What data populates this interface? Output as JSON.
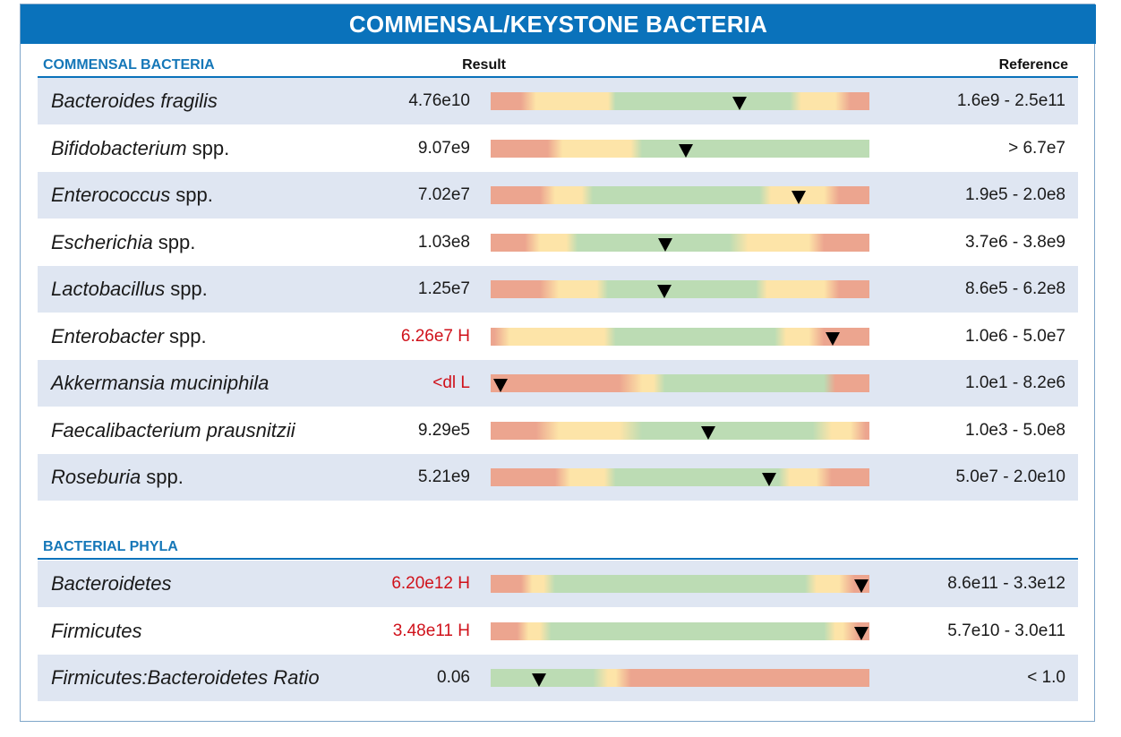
{
  "title": "COMMENSAL/KEYSTONE BACTERIA",
  "colors": {
    "red": "#eca58f",
    "yellow": "#fde4a8",
    "green": "#bcdcb4",
    "header": "#0a72bb",
    "flag": "#d0121b"
  },
  "columns": {
    "result": "Result",
    "reference": "Reference"
  },
  "sections": [
    {
      "label": "COMMENSAL BACTERIA",
      "rows": [
        {
          "name": "Bacteroides fragilis",
          "suffix": "",
          "result": "4.76e10",
          "flag": false,
          "reference": "1.6e9 - 2.5e11",
          "marker_pct": 65.7,
          "zones": [
            [
              "red",
              0
            ],
            [
              "red",
              8
            ],
            [
              "yellow",
              12
            ],
            [
              "yellow",
              31
            ],
            [
              "green",
              33
            ],
            [
              "green",
              79
            ],
            [
              "yellow",
              82
            ],
            [
              "yellow",
              91
            ],
            [
              "red",
              95
            ],
            [
              "red",
              100
            ]
          ]
        },
        {
          "name": "Bifidobacterium",
          "suffix": "spp.",
          "result": "9.07e9",
          "flag": false,
          "reference": "> 6.7e7",
          "marker_pct": 51.5,
          "zones": [
            [
              "red",
              0
            ],
            [
              "red",
              15
            ],
            [
              "yellow",
              19
            ],
            [
              "yellow",
              37
            ],
            [
              "green",
              40
            ],
            [
              "green",
              100
            ]
          ]
        },
        {
          "name": "Enterococcus",
          "suffix": "spp.",
          "result": "7.02e7",
          "flag": false,
          "reference": "1.9e5 - 2.0e8",
          "marker_pct": 81.3,
          "zones": [
            [
              "red",
              0
            ],
            [
              "red",
              13
            ],
            [
              "yellow",
              17
            ],
            [
              "yellow",
              24
            ],
            [
              "green",
              27
            ],
            [
              "green",
              71
            ],
            [
              "yellow",
              74
            ],
            [
              "yellow",
              88
            ],
            [
              "red",
              92
            ],
            [
              "red",
              100
            ]
          ]
        },
        {
          "name": "Escherichia",
          "suffix": "spp.",
          "result": "1.03e8",
          "flag": false,
          "reference": "3.7e6 - 3.8e9",
          "marker_pct": 46.1,
          "zones": [
            [
              "red",
              0
            ],
            [
              "red",
              9
            ],
            [
              "yellow",
              13
            ],
            [
              "yellow",
              20
            ],
            [
              "green",
              23
            ],
            [
              "green",
              63
            ],
            [
              "yellow",
              68
            ],
            [
              "yellow",
              84
            ],
            [
              "red",
              88
            ],
            [
              "red",
              100
            ]
          ]
        },
        {
          "name": "Lactobacillus",
          "suffix": "spp.",
          "result": "1.25e7",
          "flag": false,
          "reference": "8.6e5 - 6.2e8",
          "marker_pct": 45.9,
          "zones": [
            [
              "red",
              0
            ],
            [
              "red",
              13
            ],
            [
              "yellow",
              18
            ],
            [
              "yellow",
              28
            ],
            [
              "green",
              31
            ],
            [
              "green",
              70
            ],
            [
              "yellow",
              73
            ],
            [
              "yellow",
              88
            ],
            [
              "red",
              92
            ],
            [
              "red",
              100
            ]
          ]
        },
        {
          "name": "Enterobacter",
          "suffix": "spp.",
          "result": "6.26e7 H",
          "flag": true,
          "reference": "1.0e6 - 5.0e7",
          "marker_pct": 90.3,
          "zones": [
            [
              "red",
              0
            ],
            [
              "red",
              1
            ],
            [
              "yellow",
              5
            ],
            [
              "yellow",
              30
            ],
            [
              "green",
              33
            ],
            [
              "green",
              75
            ],
            [
              "yellow",
              78
            ],
            [
              "yellow",
              84
            ],
            [
              "red",
              88
            ],
            [
              "red",
              100
            ]
          ]
        },
        {
          "name": "Akkermansia muciniphila",
          "suffix": "",
          "result": "<dl L",
          "flag": true,
          "reference": "1.0e1 - 8.2e6",
          "marker_pct": 2.6,
          "zones": [
            [
              "red",
              0
            ],
            [
              "red",
              34
            ],
            [
              "yellow",
              40
            ],
            [
              "yellow",
              43
            ],
            [
              "green",
              46
            ],
            [
              "green",
              88
            ],
            [
              "red",
              91
            ],
            [
              "red",
              100
            ]
          ]
        },
        {
          "name": "Faecalibacterium prausnitzii",
          "suffix": "",
          "result": "9.29e5",
          "flag": false,
          "reference": "1.0e3 - 5.0e8",
          "marker_pct": 57.4,
          "zones": [
            [
              "red",
              0
            ],
            [
              "red",
              12
            ],
            [
              "yellow",
              18
            ],
            [
              "yellow",
              34
            ],
            [
              "green",
              40
            ],
            [
              "green",
              85
            ],
            [
              "yellow",
              90
            ],
            [
              "yellow",
              95
            ],
            [
              "red",
              99
            ],
            [
              "red",
              100
            ]
          ]
        },
        {
          "name": "Roseburia",
          "suffix": "spp.",
          "result": "5.21e9",
          "flag": false,
          "reference": "5.0e7 - 2.0e10",
          "marker_pct": 73.5,
          "zones": [
            [
              "red",
              0
            ],
            [
              "red",
              17
            ],
            [
              "yellow",
              21
            ],
            [
              "yellow",
              30
            ],
            [
              "green",
              33
            ],
            [
              "green",
              76
            ],
            [
              "yellow",
              79
            ],
            [
              "yellow",
              86
            ],
            [
              "red",
              90
            ],
            [
              "red",
              100
            ]
          ]
        }
      ]
    },
    {
      "label": "BACTERIAL PHYLA",
      "rows": [
        {
          "name": "Bacteroidetes",
          "suffix": "",
          "result": "6.20e12 H",
          "flag": true,
          "reference": "8.6e11 - 3.3e12",
          "marker_pct": 97.9,
          "zones": [
            [
              "red",
              0
            ],
            [
              "red",
              8
            ],
            [
              "yellow",
              11
            ],
            [
              "yellow",
              14
            ],
            [
              "green",
              17
            ],
            [
              "green",
              83
            ],
            [
              "yellow",
              86
            ],
            [
              "yellow",
              92
            ],
            [
              "red",
              96
            ],
            [
              "red",
              100
            ]
          ]
        },
        {
          "name": "Firmicutes",
          "suffix": "",
          "result": "3.48e11 H",
          "flag": true,
          "reference": "5.7e10 - 3.0e11",
          "marker_pct": 97.9,
          "zones": [
            [
              "red",
              0
            ],
            [
              "red",
              7
            ],
            [
              "yellow",
              10
            ],
            [
              "yellow",
              13
            ],
            [
              "green",
              16
            ],
            [
              "green",
              88
            ],
            [
              "yellow",
              91
            ],
            [
              "yellow",
              93
            ],
            [
              "red",
              97
            ],
            [
              "red",
              100
            ]
          ]
        },
        {
          "name": "Firmicutes:Bacteroidetes Ratio",
          "suffix": "",
          "result": "0.06",
          "flag": false,
          "reference": "< 1.0",
          "marker_pct": 12.8,
          "zones": [
            [
              "green",
              0
            ],
            [
              "green",
              27
            ],
            [
              "yellow",
              31
            ],
            [
              "yellow",
              33
            ],
            [
              "red",
              37
            ],
            [
              "red",
              100
            ]
          ]
        }
      ]
    }
  ]
}
